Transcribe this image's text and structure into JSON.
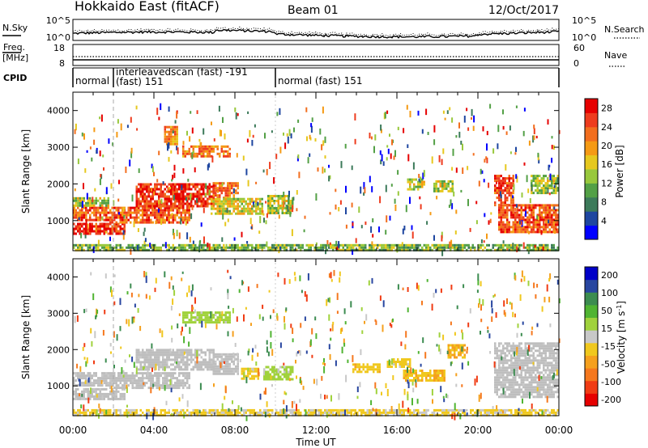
{
  "header": {
    "station": "Hokkaido East (fitACF)",
    "beam": "Beam 01",
    "date": "12/Oct/2017"
  },
  "noise_panel": {
    "left_label": "N.Sky",
    "right_label": "N.Search",
    "left_ticks": [
      "10^5",
      "10^0"
    ],
    "right_ticks": [
      "10^5",
      "10^0"
    ]
  },
  "freq_panel": {
    "left_label_line1": "Freq.",
    "left_label_line2": "[MHz]",
    "right_label": "Nave",
    "left_ticks": [
      "18",
      "8"
    ],
    "right_ticks": [
      "60",
      "0"
    ]
  },
  "cpid_panel": {
    "label": "CPID",
    "segments": [
      {
        "start": 0,
        "end": 2,
        "text": "normal"
      },
      {
        "start": 2,
        "end": 10,
        "text_line1": "interleavedscan (fast) -191",
        "text_line2": "(fast) 151"
      },
      {
        "start": 10,
        "end": 24,
        "text": "normal (fast) 151"
      }
    ]
  },
  "x_axis": {
    "title": "Time UT",
    "tick_labels": [
      "00:00",
      "04:00",
      "08:00",
      "12:00",
      "16:00",
      "20:00",
      "00:00"
    ],
    "range_hours": [
      0,
      24
    ]
  },
  "colors": {
    "power_scale": [
      "#0000ff",
      "#1e46a0",
      "#3c7a5a",
      "#53a046",
      "#98c83c",
      "#e6c81e",
      "#f59a14",
      "#f26e1e",
      "#ee3c1e",
      "#e60000"
    ],
    "velocity_scale": [
      "#e60000",
      "#f03c14",
      "#f5781e",
      "#f5a01e",
      "#f0c81e",
      "#c8c8c8",
      "#a0d23c",
      "#50b432",
      "#3c8c50",
      "#2846a0",
      "#0000c8"
    ],
    "ground_scatter": "#bebebe"
  },
  "chart_data": [
    {
      "type": "heatmap",
      "panel": "power",
      "ylabel": "Slant Range [km]",
      "xlabel": "",
      "ylim": [
        180,
        4500
      ],
      "xlim": [
        0,
        24
      ],
      "y_tick_labels": [
        "1000",
        "2000",
        "3000",
        "4000"
      ],
      "colorbar": {
        "label": "Power [dB]",
        "tick_labels": [
          "28",
          "24",
          "20",
          "16",
          "12",
          "8",
          "4"
        ],
        "range": [
          0,
          30
        ]
      },
      "regions": [
        {
          "t0": 0.0,
          "t1": 2.6,
          "r0": 620,
          "r1": 940,
          "value": 27
        },
        {
          "t0": 0.0,
          "t1": 1.8,
          "r0": 1040,
          "r1": 1380,
          "value": 24
        },
        {
          "t0": 0.0,
          "t1": 1.8,
          "r0": 1420,
          "r1": 1640,
          "value": 14
        },
        {
          "t0": 1.8,
          "t1": 5.8,
          "r0": 960,
          "r1": 1380,
          "value": 24
        },
        {
          "t0": 3.1,
          "t1": 7.0,
          "r0": 1420,
          "r1": 2020,
          "value": 26
        },
        {
          "t0": 6.9,
          "t1": 8.2,
          "r0": 1550,
          "r1": 2050,
          "value": 22
        },
        {
          "t0": 5.4,
          "t1": 7.8,
          "r0": 2750,
          "r1": 3050,
          "value": 22
        },
        {
          "t0": 4.5,
          "t1": 5.2,
          "r0": 3080,
          "r1": 3580,
          "value": 20
        },
        {
          "t0": 6.8,
          "t1": 9.4,
          "r0": 1200,
          "r1": 1620,
          "value": 16
        },
        {
          "t0": 9.6,
          "t1": 10.9,
          "r0": 1200,
          "r1": 1700,
          "value": 14
        },
        {
          "t0": 16.5,
          "t1": 17.4,
          "r0": 1880,
          "r1": 2150,
          "value": 14
        },
        {
          "t0": 17.8,
          "t1": 18.8,
          "r0": 1820,
          "r1": 2100,
          "value": 14
        },
        {
          "t0": 20.8,
          "t1": 21.8,
          "r0": 1450,
          "r1": 2250,
          "value": 25
        },
        {
          "t0": 21.0,
          "t1": 24.0,
          "r0": 720,
          "r1": 1450,
          "value": 24
        },
        {
          "t0": 22.6,
          "t1": 24.0,
          "r0": 1750,
          "r1": 2250,
          "value": 14
        },
        {
          "t0": 0.0,
          "t1": 24.0,
          "r0": 200,
          "r1": 360,
          "value": 12
        }
      ]
    },
    {
      "type": "heatmap",
      "panel": "velocity",
      "ylabel": "Slant Range [km]",
      "xlabel": "Time UT",
      "ylim": [
        180,
        4500
      ],
      "xlim": [
        0,
        24
      ],
      "y_tick_labels": [
        "1000",
        "2000",
        "3000",
        "4000"
      ],
      "colorbar": {
        "label": "Velocity [m s^-1]",
        "tick_labels": [
          "200",
          "100",
          "50",
          "15",
          "-15",
          "-50",
          "-100",
          "-200"
        ],
        "range": [
          -250,
          250
        ]
      },
      "regions": [
        {
          "t0": 0.0,
          "t1": 2.6,
          "r0": 620,
          "r1": 940,
          "value": null
        },
        {
          "t0": 0.0,
          "t1": 1.8,
          "r0": 1040,
          "r1": 1380,
          "value": null
        },
        {
          "t0": 1.8,
          "t1": 5.8,
          "r0": 960,
          "r1": 1380,
          "value": null
        },
        {
          "t0": 3.1,
          "t1": 7.0,
          "r0": 1420,
          "r1": 2020,
          "value": null
        },
        {
          "t0": 6.9,
          "t1": 8.2,
          "r0": 1350,
          "r1": 1900,
          "value": null
        },
        {
          "t0": 5.4,
          "t1": 7.8,
          "r0": 2750,
          "r1": 3050,
          "value": 40
        },
        {
          "t0": 8.3,
          "t1": 9.2,
          "r0": 1200,
          "r1": 1500,
          "value": -40
        },
        {
          "t0": 9.4,
          "t1": 10.9,
          "r0": 1180,
          "r1": 1550,
          "value": 40
        },
        {
          "t0": 13.8,
          "t1": 15.2,
          "r0": 1400,
          "r1": 1620,
          "value": -50
        },
        {
          "t0": 15.5,
          "t1": 16.6,
          "r0": 1550,
          "r1": 1760,
          "value": -40
        },
        {
          "t0": 16.3,
          "t1": 18.4,
          "r0": 1170,
          "r1": 1450,
          "value": -60
        },
        {
          "t0": 18.5,
          "t1": 19.4,
          "r0": 1800,
          "r1": 2150,
          "value": -70
        },
        {
          "t0": 20.8,
          "t1": 24.0,
          "r0": 720,
          "r1": 2200,
          "value": null
        },
        {
          "t0": 0.0,
          "t1": 24.0,
          "r0": 200,
          "r1": 360,
          "value": -30
        }
      ]
    }
  ]
}
